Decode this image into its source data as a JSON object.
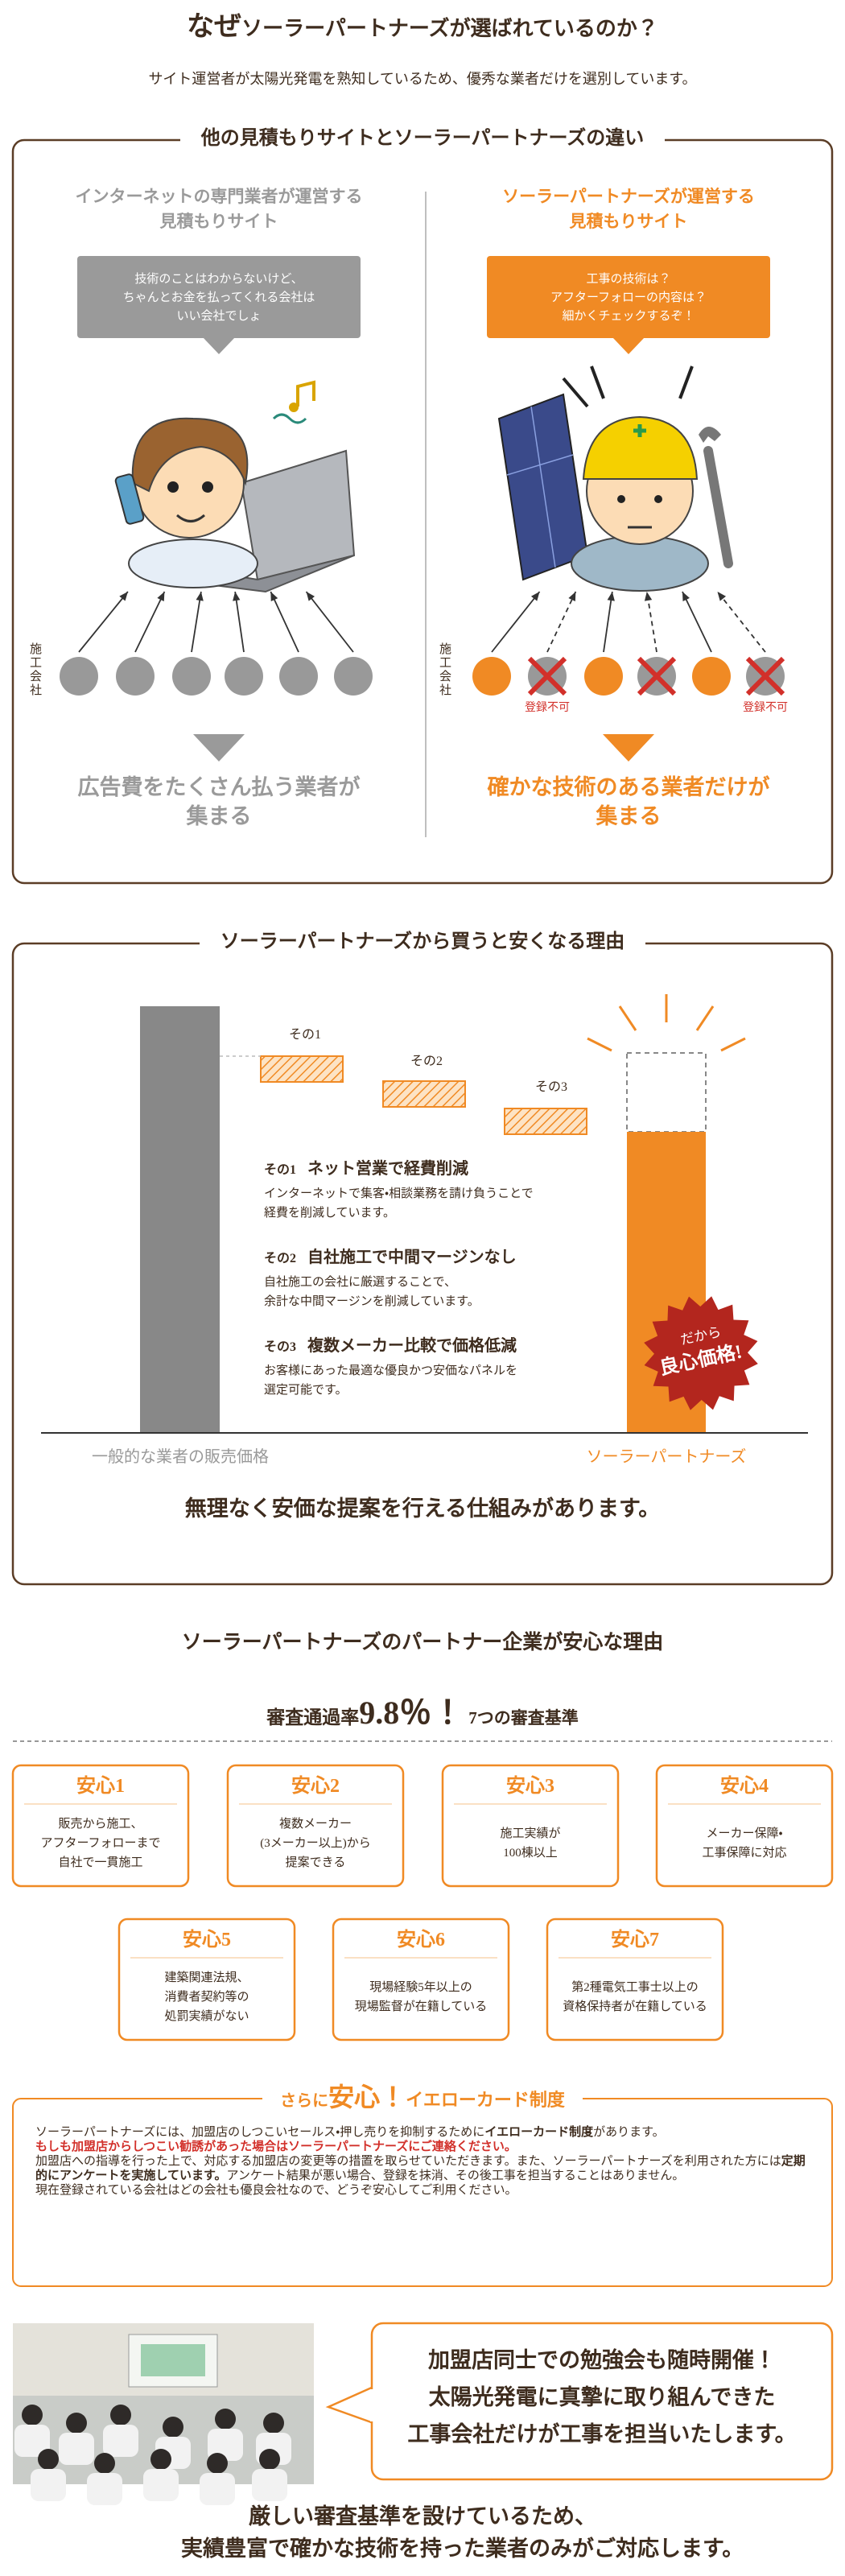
{
  "header": {
    "title_em": "なぜ",
    "title": "ソーラーパートナーズが選ばれているのか？",
    "subtitle": "サイト運営者が太陽光発電を熟知しているため、優秀な業者だけを選別しています。"
  },
  "comparison": {
    "title": "他の見積もりサイトとソーラーパートナーズの違い",
    "left": {
      "heading": [
        "インターネットの専門業者が運営する",
        "見積もりサイト"
      ],
      "bubble": [
        "技術のことはわからないけど、",
        "ちゃんとお金を払ってくれる会社は",
        "いい会社でしょ"
      ],
      "company_label": "施工会社",
      "result": [
        "広告費をたくさん払う業者が",
        "集まる"
      ]
    },
    "right": {
      "heading": [
        "ソーラーパートナーズが運営する",
        "見積もりサイト"
      ],
      "bubble": [
        "工事の技術は？",
        "アフターフォローの内容は？",
        "細かくチェックするぞ！"
      ],
      "company_label": "施工会社",
      "rejected_labels": [
        "登録不可",
        "登録不可"
      ],
      "result": [
        "確かな技術のある業者だけが",
        "集まる"
      ]
    }
  },
  "pricing": {
    "title": "ソーラーパートナーズから買うと安くなる理由",
    "step_labels": [
      "その1",
      "その2",
      "その3"
    ],
    "items": [
      {
        "label": "その1",
        "heading": "ネット営業で経費削減",
        "desc": [
          "インターネットで集客・相談業務を請け負うことで",
          "経費を削減しています。"
        ]
      },
      {
        "label": "その2",
        "heading": "自社施工で中間マージンなし",
        "desc": [
          "自社施工の会社に厳選することで、",
          "余計な中間マージンを削減しています。"
        ]
      },
      {
        "label": "その3",
        "heading": "複数メーカー比較で価格低減",
        "desc": [
          "お客様にあった最適な優良かつ安価なパネルを",
          "選定可能です。"
        ]
      }
    ],
    "badge": [
      "だから",
      "良心価格!"
    ],
    "general_label": "一般的な業者の販売価格",
    "ours_label": "ソーラーパートナーズ",
    "footer": "無理なく安価な提案を行える仕組みがあります。"
  },
  "trust": {
    "title": "ソーラーパートナーズのパートナー企業が安心な理由",
    "pass_rate": {
      "prefix": "審査通過率",
      "rate": "9.8％！",
      "suffix": "7つの審査基準"
    },
    "criteria": [
      {
        "title": "安心1",
        "lines": [
          "販売から施工、",
          "アフターフォローまで",
          "自社で一貫施工"
        ]
      },
      {
        "title": "安心2",
        "lines": [
          "複数メーカー",
          "(3メーカー以上)から",
          "提案できる"
        ]
      },
      {
        "title": "安心3",
        "lines": [
          "施工実績が",
          "100棟以上"
        ]
      },
      {
        "title": "安心4",
        "lines": [
          "メーカー保障・",
          "工事保障に対応"
        ]
      },
      {
        "title": "安心5",
        "lines": [
          "建築関連法規、",
          "消費者契約等の",
          "処罰実績がない"
        ]
      },
      {
        "title": "安心6",
        "lines": [
          "現場経験5年以上の",
          "現場監督が在籍している"
        ]
      },
      {
        "title": "安心7",
        "lines": [
          "第2種電気工事士以上の",
          "資格保持者が在籍している"
        ]
      }
    ],
    "yellow_card": {
      "title_pre": "さらに",
      "title_em": "安心！",
      "title": "イエローカード制度",
      "p1": [
        "ソーラーパートナーズには、加盟店のしつこいセールス・押し売りを抑制するために",
        "イエローカード制度",
        "があります。"
      ],
      "p2": "もしも加盟店からしつこい勧誘があった場合はソーラーパートナーズにご連絡ください。",
      "p3": [
        "加盟店への指導を行った上で、対応する加盟店の変更等の措置を取らせていただきます。また、ソーラーパートナーズを利用された方には",
        "定期的にアンケートを実施しています。",
        "アンケート結果が悪い場合、登録を抹消、その後工事を担当することはありません。"
      ],
      "p4": "現在登録されている会社はどの会社も優良会社なので、どうぞ安心してご利用ください。"
    },
    "study": [
      "加盟店同士での勉強会も随時開催！",
      "太陽光発電に真摯に取り組んできた",
      "工事会社だけが工事を担当いたします。"
    ],
    "footer": [
      "厳しい審査基準を設けているため、",
      "実績豊富で確かな技術を持った業者のみがご対応します。"
    ]
  }
}
